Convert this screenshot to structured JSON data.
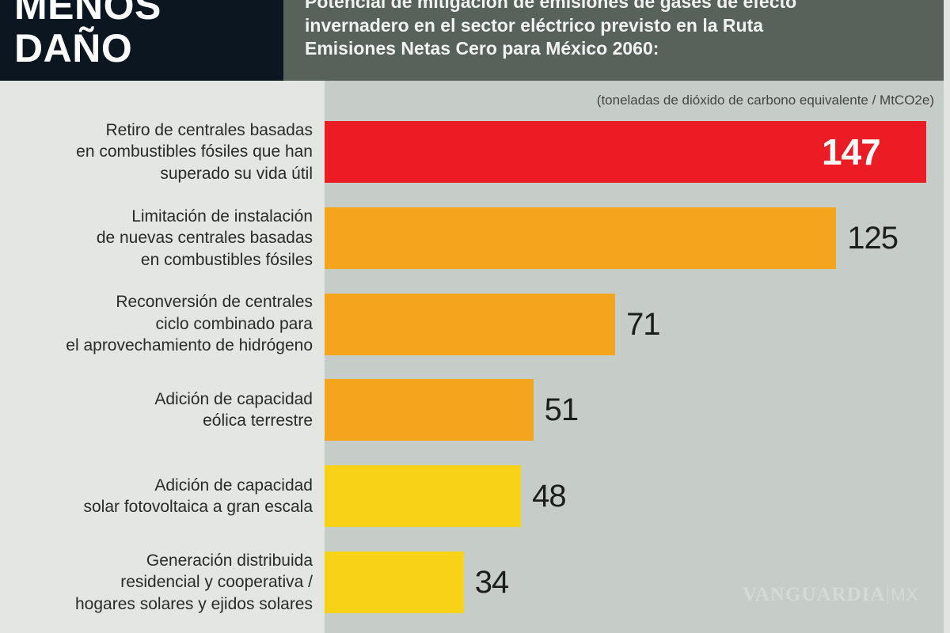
{
  "header": {
    "title_lines": [
      "MENOS",
      "DAÑO"
    ],
    "subtitle_lines": [
      "Potencial de mitigación de emisiones de gases de efecto",
      "invernadero en el sector eléctrico previsto en la Ruta",
      "Emisiones Netas Cero para México 2060:"
    ]
  },
  "watermark": {
    "brand": "VANGUARDIA",
    "suffix": "MX"
  },
  "chart_data": {
    "type": "bar",
    "orientation": "horizontal",
    "title": "Potencial de mitigación de emisiones de gases de efecto invernadero en el sector eléctrico previsto en la Ruta Emisiones Netas Cero para México 2060:",
    "unit_label": "(toneladas de dióxido de carbono equivalente / MtCO2e)",
    "categories": [
      [
        "Retiro de centrales basadas",
        "en combustibles fósiles que han",
        "superado su vida útil"
      ],
      [
        "Limitación de instalación",
        "de nuevas centrales basadas",
        "en combustibles fósiles"
      ],
      [
        "Reconversión de centrales",
        "ciclo combinado para",
        "el aprovechamiento de hidrógeno"
      ],
      [
        "Adición de capacidad",
        "eólica terrestre"
      ],
      [
        "Adición de capacidad",
        "solar fotovoltaica a gran escala"
      ],
      [
        "Generación distribuida",
        "residencial y cooperativa /",
        "hogares solares y ejidos solares"
      ]
    ],
    "values": [
      147,
      125,
      71,
      51,
      48,
      34
    ],
    "bar_colors": [
      "#ec1c24",
      "#f5a41d",
      "#f5a41d",
      "#f5a41d",
      "#f8d216",
      "#f8d216"
    ],
    "grid": false,
    "axis_visible": false
  }
}
